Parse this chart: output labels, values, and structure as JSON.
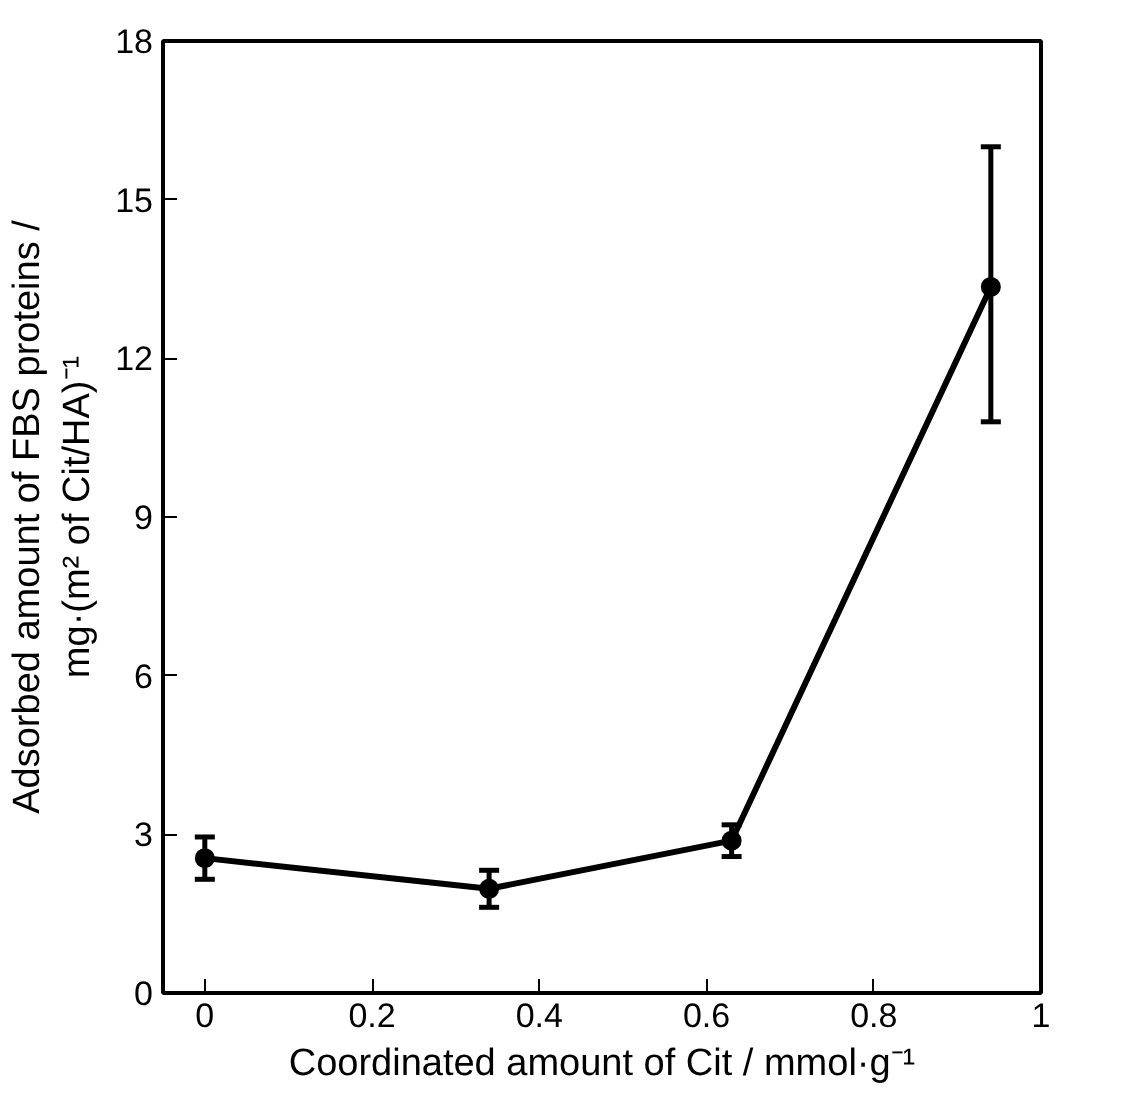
{
  "chart_data": {
    "type": "line",
    "xlabel": "Coordinated amount of Cit / mmol·g⁻¹",
    "ylabel": "Adsorbed amount of FBS proteins /\nmg·(m² of Cit/HA)⁻¹",
    "x": [
      0,
      0.34,
      0.63,
      0.94
    ],
    "series": [
      {
        "color": "#000000",
        "values": [
          2.55,
          1.97,
          2.88,
          13.35
        ],
        "errors": [
          0.4,
          0.35,
          0.3,
          [
            10.8,
            16.0
          ]
        ]
      }
    ],
    "xlim": [
      -0.05,
      1.0
    ],
    "xticks": [
      0,
      0.2,
      0.4,
      0.6,
      0.8,
      1
    ],
    "ylim": [
      0,
      18
    ],
    "yticks": [
      0,
      3,
      6,
      9,
      12,
      15,
      18
    ],
    "marker": "circle",
    "line_style": "solid",
    "grid": false
  }
}
